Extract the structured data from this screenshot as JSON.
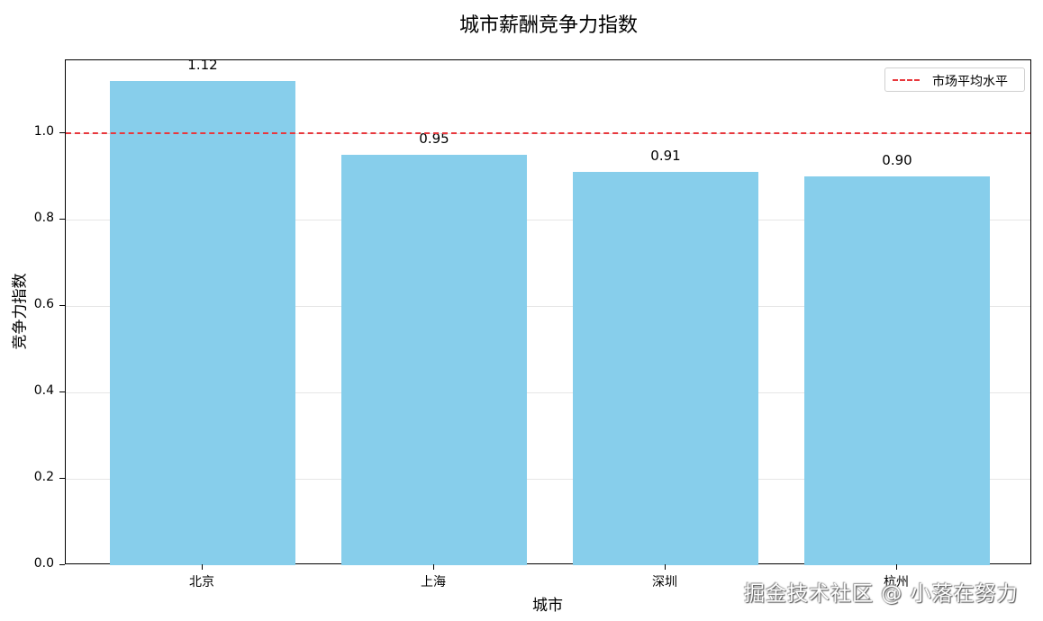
{
  "chart_data": {
    "type": "bar",
    "title": "城市薪酬竞争力指数",
    "xlabel": "城市",
    "ylabel": "竞争力指数",
    "categories": [
      "北京",
      "上海",
      "深圳",
      "杭州"
    ],
    "values": [
      1.12,
      0.95,
      0.91,
      0.9
    ],
    "value_labels": [
      "1.12",
      "0.95",
      "0.91",
      "0.90"
    ],
    "bar_color": "#87CEEB",
    "ylim": [
      0,
      1.17
    ],
    "yticks": [
      0.0,
      0.2,
      0.4,
      0.6,
      0.8,
      1.0
    ],
    "ytick_labels": [
      "0.0",
      "0.2",
      "0.4",
      "0.6",
      "0.8",
      "1.0"
    ],
    "grid": {
      "axis": "y",
      "on": true,
      "color": "#e6e6e6"
    },
    "reference_line": {
      "y": 1.0,
      "label": "市场平均水平",
      "style": "dashed",
      "color": "#E8383D"
    },
    "legend": {
      "position": "upper right",
      "entries": [
        "市场平均水平"
      ]
    }
  },
  "watermark": "掘金技术社区 @ 小落在努力"
}
